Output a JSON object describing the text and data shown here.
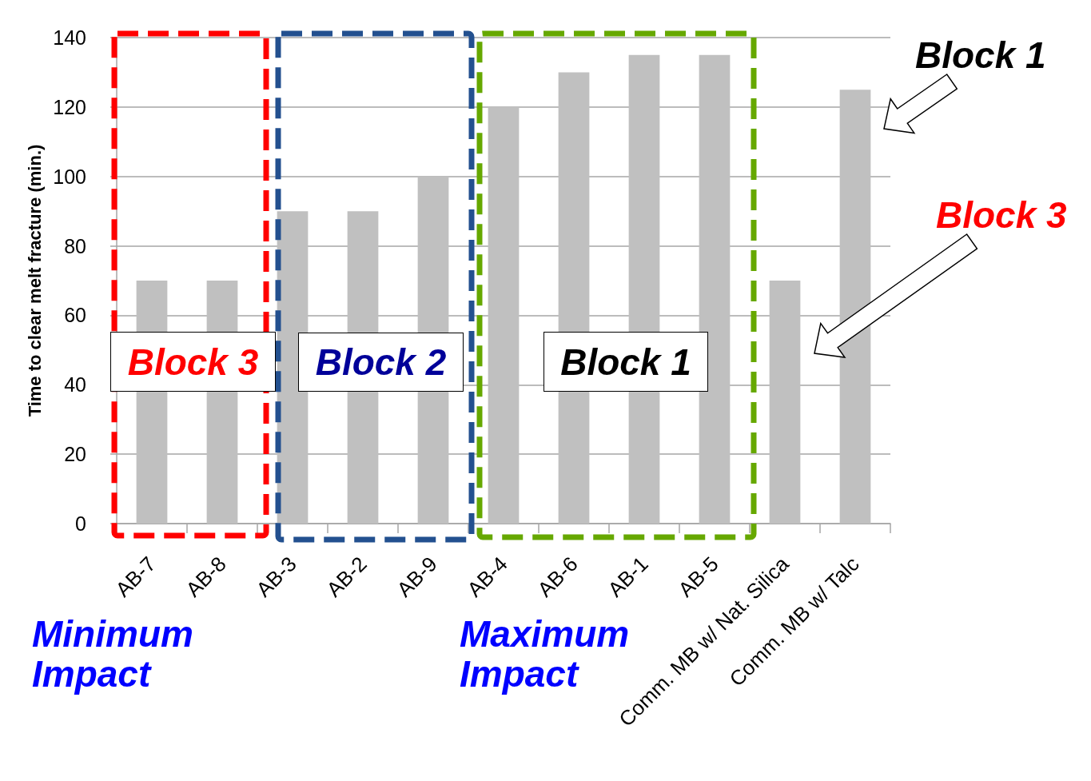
{
  "chart_data": {
    "type": "bar",
    "ylabel": "Time to clear melt fracture (min.)",
    "categories": [
      "AB-7",
      "AB-8",
      "AB-3",
      "AB-2",
      "AB-9",
      "AB-4",
      "AB-6",
      "AB-1",
      "AB-5",
      "Comm. MB w/ Nat. Silica",
      "Comm. MB w/ Talc"
    ],
    "values": [
      70,
      70,
      90,
      90,
      100,
      120,
      130,
      135,
      135,
      70,
      125
    ],
    "color": "#c0c0c0",
    "ylim": [
      0,
      140
    ],
    "yticks": [
      0,
      20,
      40,
      60,
      80,
      100,
      120,
      140
    ],
    "grid": "y",
    "annotations": [
      "Block 3",
      "Block 2",
      "Block 1",
      "Block 1",
      "Block 3",
      "Minimum Impact",
      "Maximum Impact"
    ]
  }
}
